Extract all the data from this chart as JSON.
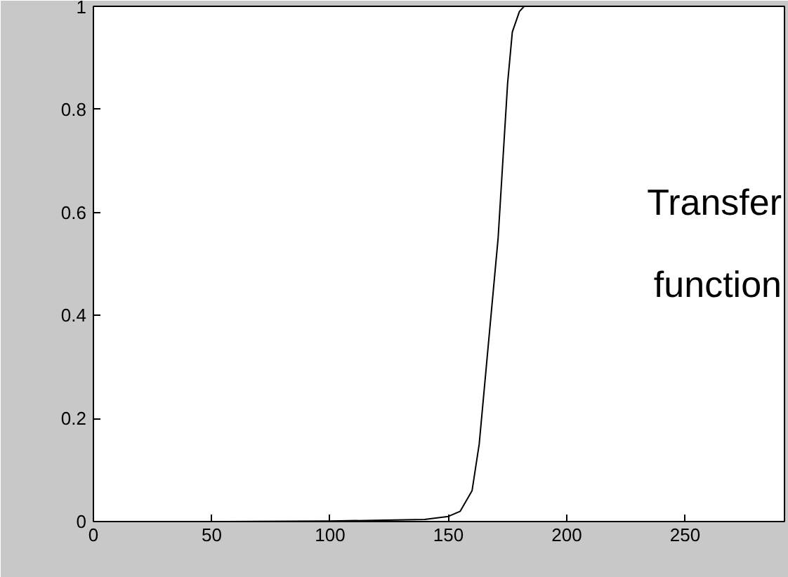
{
  "chart_data": {
    "type": "line",
    "x": [
      56,
      100,
      140,
      150,
      155,
      160,
      163,
      166,
      169,
      171,
      173,
      175,
      177,
      180,
      182
    ],
    "series": [
      {
        "color": "#000000",
        "values": [
          0,
          0.001,
          0.004,
          0.01,
          0.02,
          0.06,
          0.15,
          0.3,
          0.45,
          0.55,
          0.7,
          0.85,
          0.95,
          0.99,
          1.0
        ]
      }
    ],
    "xlim": [
      0,
      292
    ],
    "ylim": [
      0,
      1
    ],
    "xticks": [
      0,
      50,
      100,
      150,
      200,
      250
    ],
    "yticks": [
      0,
      {
        "value": 0.2,
        "label": "0.2"
      },
      {
        "value": 0.4,
        "label": "0.4"
      },
      {
        "value": 0.6,
        "label": "0.6"
      },
      {
        "value": 0.8,
        "label": "0.8"
      },
      1
    ],
    "annotations": [
      "Transfer function"
    ],
    "grid": false
  }
}
